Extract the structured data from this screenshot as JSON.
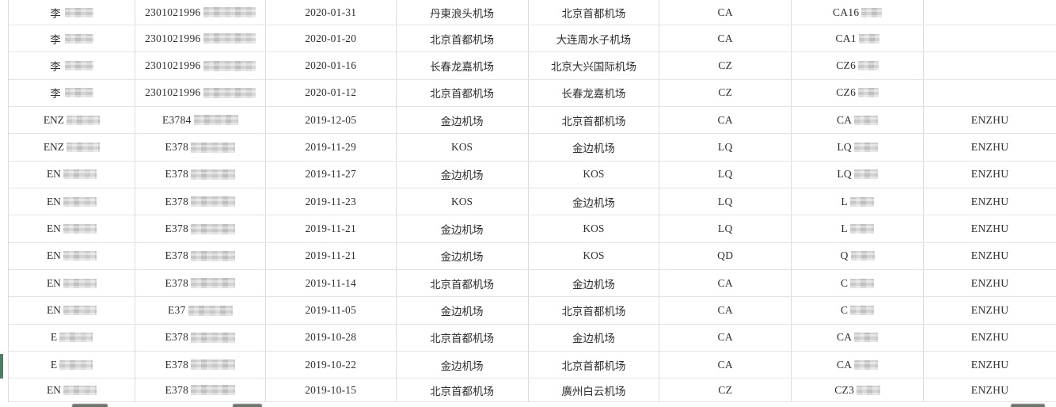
{
  "colors": {
    "grid_line": "#e4e4e4",
    "column_line": "#dcdcdc",
    "text": "#2f2f2f",
    "selection_green": "#4d7d62",
    "mosaic_gray": "#d3d3d3",
    "partial_row_blob": "#585d58"
  },
  "table": {
    "redaction_note": "name, id and flight values are partially hidden by pixelated mosaics; only prefixes below are visible",
    "rows": [
      {
        "name": "李",
        "id": "2301021996",
        "date": "2020-01-31",
        "from": "丹東浪头机场",
        "to": "北京首都机场",
        "carrier": "CA",
        "flight": "CA16",
        "agent": ""
      },
      {
        "name": "李",
        "id": "2301021996",
        "date": "2020-01-20",
        "from": "北京首都机场",
        "to": "大连周水子机场",
        "carrier": "CA",
        "flight": "CA1",
        "agent": ""
      },
      {
        "name": "李",
        "id": "2301021996",
        "date": "2020-01-16",
        "from": "长春龙嘉机场",
        "to": "北京大兴国际机场",
        "carrier": "CZ",
        "flight": "CZ6",
        "agent": ""
      },
      {
        "name": "李",
        "id": "2301021996",
        "date": "2020-01-12",
        "from": "北京首都机场",
        "to": "长春龙嘉机场",
        "carrier": "CZ",
        "flight": "CZ6",
        "agent": ""
      },
      {
        "name": "ENZ",
        "id": "E3784",
        "date": "2019-12-05",
        "from": "金边机场",
        "to": "北京首都机场",
        "carrier": "CA",
        "flight": "CA",
        "agent": "ENZHU"
      },
      {
        "name": "ENZ",
        "id": "E378",
        "date": "2019-11-29",
        "from": "KOS",
        "to": "金边机场",
        "carrier": "LQ",
        "flight": "LQ",
        "agent": "ENZHU"
      },
      {
        "name": "EN",
        "id": "E378",
        "date": "2019-11-27",
        "from": "金边机场",
        "to": "KOS",
        "carrier": "LQ",
        "flight": "LQ",
        "agent": "ENZHU"
      },
      {
        "name": "EN",
        "id": "E378",
        "date": "2019-11-23",
        "from": "KOS",
        "to": "金边机场",
        "carrier": "LQ",
        "flight": "L",
        "agent": "ENZHU"
      },
      {
        "name": "EN",
        "id": "E378",
        "date": "2019-11-21",
        "from": "金边机场",
        "to": "KOS",
        "carrier": "LQ",
        "flight": "L",
        "agent": "ENZHU"
      },
      {
        "name": "EN",
        "id": "E378",
        "date": "2019-11-21",
        "from": "金边机场",
        "to": "KOS",
        "carrier": "QD",
        "flight": "Q",
        "agent": "ENZHU"
      },
      {
        "name": "EN",
        "id": "E378",
        "date": "2019-11-14",
        "from": "北京首都机场",
        "to": "金边机场",
        "carrier": "CA",
        "flight": "C",
        "agent": "ENZHU"
      },
      {
        "name": "EN",
        "id": "E37",
        "date": "2019-11-05",
        "from": "金边机场",
        "to": "北京首都机场",
        "carrier": "CA",
        "flight": "C",
        "agent": "ENZHU"
      },
      {
        "name": "E",
        "id": "E378",
        "date": "2019-10-28",
        "from": "北京首都机场",
        "to": "金边机场",
        "carrier": "CA",
        "flight": "CA",
        "agent": "ENZHU"
      },
      {
        "name": "E",
        "id": "E378",
        "date": "2019-10-22",
        "from": "金边机场",
        "to": "北京首都机场",
        "carrier": "CA",
        "flight": "CA",
        "agent": "ENZHU"
      },
      {
        "name": "EN",
        "id": "E378",
        "date": "2019-10-15",
        "from": "北京首都机场",
        "to": "廣州白云机场",
        "carrier": "CZ",
        "flight": "CZ3",
        "agent": "ENZHU"
      }
    ]
  }
}
